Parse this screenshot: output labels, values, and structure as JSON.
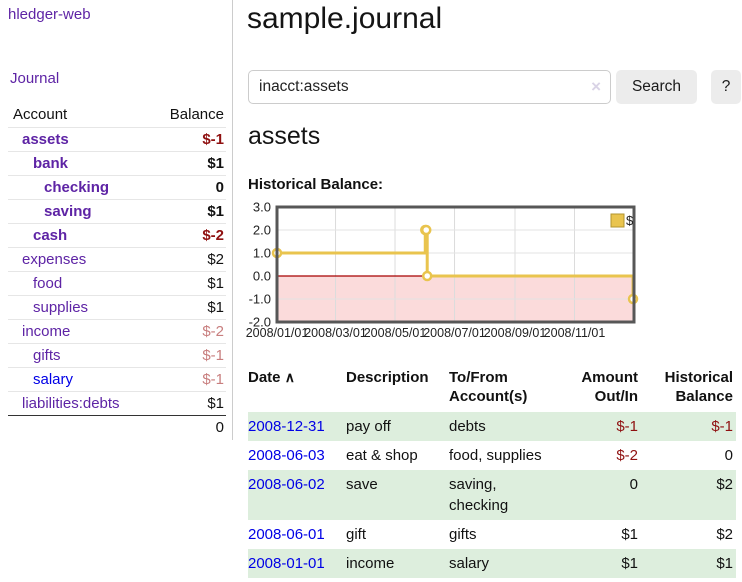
{
  "app": {
    "brand": "hledger-web"
  },
  "sidebar": {
    "journal_link": "Journal",
    "accounts": {
      "header_account": "Account",
      "header_balance": "Balance",
      "rows": [
        {
          "name": "assets",
          "balance": "$-1"
        },
        {
          "name": "bank",
          "balance": "$1"
        },
        {
          "name": "checking",
          "balance": "0"
        },
        {
          "name": "saving",
          "balance": "$1"
        },
        {
          "name": "cash",
          "balance": "$-2"
        },
        {
          "name": "expenses",
          "balance": "$2"
        },
        {
          "name": "food",
          "balance": "$1"
        },
        {
          "name": "supplies",
          "balance": "$1"
        },
        {
          "name": "income",
          "balance": "$-2"
        },
        {
          "name": "gifts",
          "balance": "$-1"
        },
        {
          "name": "salary",
          "balance": "$-1"
        },
        {
          "name": "liabilities:debts",
          "balance": "$1"
        }
      ],
      "total": "0"
    }
  },
  "header": {
    "title": "sample.journal"
  },
  "search": {
    "value": "inacct:assets",
    "clear_icon": "×",
    "search_button": "Search",
    "help_button": "?"
  },
  "account_view": {
    "heading": "assets",
    "chart_label": "Historical Balance:"
  },
  "chart_data": {
    "type": "line",
    "title": "Historical Balance",
    "step": true,
    "x_range": [
      "2008-01-01",
      "2009-01-01"
    ],
    "ylim": [
      -2,
      3
    ],
    "yticks": [
      {
        "v": 3,
        "label": "3.0"
      },
      {
        "v": 2,
        "label": "2.0"
      },
      {
        "v": 1,
        "label": "1.0"
      },
      {
        "v": 0,
        "label": "0.0"
      },
      {
        "v": -1,
        "label": "-1.0"
      },
      {
        "v": -2,
        "label": "-2.0"
      }
    ],
    "xticks": [
      {
        "date": "2008-01-01",
        "label": "2008/01/01"
      },
      {
        "date": "2008-03-01",
        "label": "2008/03/01"
      },
      {
        "date": "2008-05-01",
        "label": "2008/05/01"
      },
      {
        "date": "2008-07-01",
        "label": "2008/07/01"
      },
      {
        "date": "2008-09-01",
        "label": "2008/09/01"
      },
      {
        "date": "2008-11-01",
        "label": "2008/11/01"
      }
    ],
    "series": [
      {
        "name": "$",
        "color": "#e9c44e",
        "points": [
          [
            "2008-01-01",
            1
          ],
          [
            "2008-06-01",
            2
          ],
          [
            "2008-06-02",
            2
          ],
          [
            "2008-06-03",
            0
          ],
          [
            "2008-12-31",
            -1
          ]
        ]
      }
    ],
    "legend": [
      {
        "label": "$",
        "color": "#e9c44e"
      }
    ],
    "legend_position": "top-right",
    "negative_region_color": "#fbdbdb",
    "zero_line_color": "#a60000",
    "grid": true
  },
  "transactions": {
    "headers": {
      "date": "Date",
      "sort_icon": "∧",
      "description": "Description",
      "tofrom_line1": "To/From",
      "tofrom_line2": "Account(s)",
      "amount_line1": "Amount",
      "amount_line2": "Out/In",
      "hist_line1": "Historical",
      "hist_line2": "Balance"
    },
    "rows": [
      {
        "date": "2008-12-31",
        "description": "pay off",
        "tofrom": "debts",
        "amount": "$-1",
        "balance": "$-1"
      },
      {
        "date": "2008-06-03",
        "description": "eat & shop",
        "tofrom": "food, supplies",
        "amount": "$-2",
        "balance": "0"
      },
      {
        "date": "2008-06-02",
        "description": "save",
        "tofrom": "saving, checking",
        "amount": "0",
        "balance": "$2"
      },
      {
        "date": "2008-06-01",
        "description": "gift",
        "tofrom": "gifts",
        "amount": "$1",
        "balance": "$2"
      },
      {
        "date": "2008-01-01",
        "description": "income",
        "tofrom": "salary",
        "amount": "$1",
        "balance": "$1"
      }
    ]
  }
}
